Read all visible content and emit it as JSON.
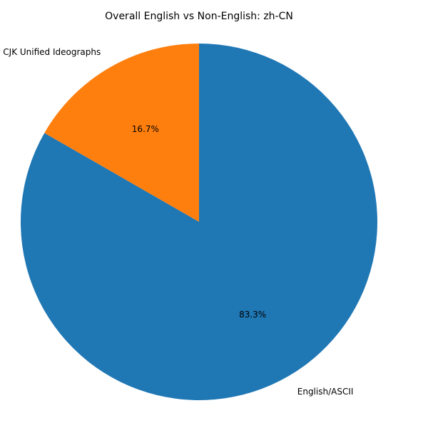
{
  "chart_data": {
    "type": "pie",
    "title": "Overall English vs Non-English: zh-CN",
    "start_angle_deg": 90,
    "direction": "counterclockwise",
    "slices": [
      {
        "label": "CJK Unified Ideographs",
        "value": 16.7,
        "pct_label": "16.7%",
        "color": "#ff7f0e"
      },
      {
        "label": "English/ASCII",
        "value": 83.3,
        "pct_label": "83.3%",
        "color": "#1f77b4"
      }
    ]
  }
}
